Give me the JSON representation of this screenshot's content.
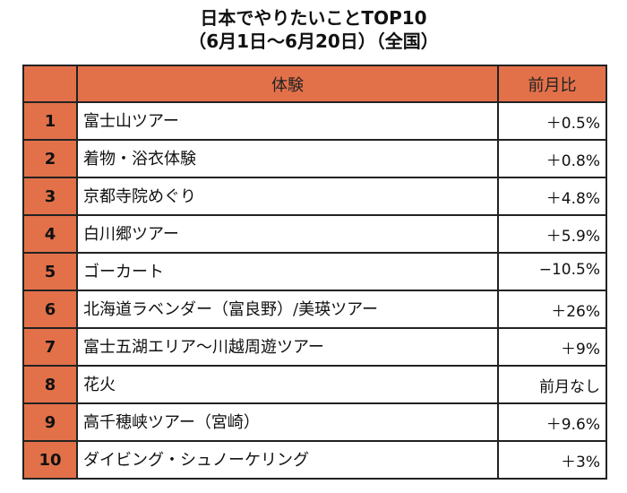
{
  "title": {
    "line1": "日本でやりたいことTOP10",
    "line2": "（6月1日〜6月20日）（全国）"
  },
  "table": {
    "headers": {
      "rank": "",
      "experience": "体験",
      "mom_change": "前月比"
    },
    "rows": [
      {
        "rank": "1",
        "experience": "富士山ツアー",
        "change": "＋0.5%"
      },
      {
        "rank": "2",
        "experience": "着物・浴衣体験",
        "change": "＋0.8%"
      },
      {
        "rank": "3",
        "experience": "京都寺院めぐり",
        "change": "＋4.8%"
      },
      {
        "rank": "4",
        "experience": "白川郷ツアー",
        "change": "＋5.9%"
      },
      {
        "rank": "5",
        "experience": "ゴーカート",
        "change": "−10.5%"
      },
      {
        "rank": "6",
        "experience": "北海道ラベンダー（富良野）/美瑛ツアー",
        "change": "＋26%"
      },
      {
        "rank": "7",
        "experience": "富士五湖エリア〜川越周遊ツアー",
        "change": "＋9%"
      },
      {
        "rank": "8",
        "experience": "花火",
        "change": "前月なし"
      },
      {
        "rank": "9",
        "experience": "高千穂峡ツアー（宮崎）",
        "change": "＋9.6%"
      },
      {
        "rank": "10",
        "experience": "ダイビング・シュノーケリング",
        "change": "＋3%"
      }
    ]
  },
  "colors": {
    "accent_orange": "#e2714a",
    "border": "#222222",
    "background": "#ffffff"
  }
}
